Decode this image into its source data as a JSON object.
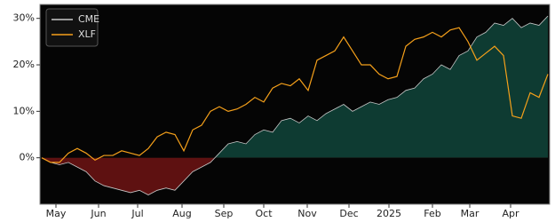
{
  "chart_data": {
    "type": "line",
    "ylim": [
      -10,
      33
    ],
    "yticks": [
      {
        "value": 0,
        "label": "0%"
      },
      {
        "value": 10,
        "label": "10%"
      },
      {
        "value": 20,
        "label": "20%"
      },
      {
        "value": 30,
        "label": "30%"
      }
    ],
    "xlim": [
      0,
      57
    ],
    "xticks": [
      {
        "value": 1.6,
        "label": "May"
      },
      {
        "value": 6.4,
        "label": "Jun"
      },
      {
        "value": 10.8,
        "label": "Jul"
      },
      {
        "value": 15.8,
        "label": "Aug"
      },
      {
        "value": 20.5,
        "label": "Sep"
      },
      {
        "value": 25.0,
        "label": "Oct"
      },
      {
        "value": 29.9,
        "label": "Nov"
      },
      {
        "value": 34.6,
        "label": "Dec"
      },
      {
        "value": 39.1,
        "label": "2025"
      },
      {
        "value": 44.0,
        "label": "Feb"
      },
      {
        "value": 48.2,
        "label": "Mar"
      },
      {
        "value": 52.8,
        "label": "Apr"
      }
    ],
    "legend": "upper left",
    "fill_positive": "#0e3b32",
    "fill_negative": "#5e1111",
    "series": [
      {
        "name": "CME",
        "color": "#c8c8c8",
        "values": [
          0,
          -1,
          -1.5,
          -1,
          -2,
          -3,
          -5,
          -6,
          -6.5,
          -7,
          -7.5,
          -7,
          -8,
          -7,
          -6.5,
          -7,
          -5,
          -3,
          -2,
          -1,
          1,
          3,
          3.5,
          3,
          5,
          6,
          5.5,
          8,
          8.5,
          7.5,
          9,
          8,
          9.5,
          10.5,
          11.5,
          10,
          11,
          12,
          11.5,
          12.5,
          13,
          14.5,
          15,
          17,
          18,
          20,
          19,
          22,
          23,
          26,
          27,
          29,
          28.5,
          30,
          28,
          29,
          28.5,
          30.5
        ]
      },
      {
        "name": "XLF",
        "color": "#f5a01a",
        "values": [
          0,
          -1,
          -1,
          1,
          2,
          1,
          -0.5,
          0.5,
          0.5,
          1.5,
          1,
          0.5,
          2,
          4.5,
          5.5,
          5,
          1.5,
          6,
          7,
          10,
          11,
          10,
          10.5,
          11.5,
          13,
          12,
          15,
          16,
          15.5,
          17,
          14.5,
          21,
          22,
          23,
          26,
          23,
          20,
          20,
          18,
          17,
          17.5,
          24,
          25.5,
          26,
          27,
          26,
          27.5,
          28,
          25,
          21,
          22.5,
          24,
          22,
          9,
          8.5,
          14,
          13,
          18
        ]
      }
    ]
  }
}
